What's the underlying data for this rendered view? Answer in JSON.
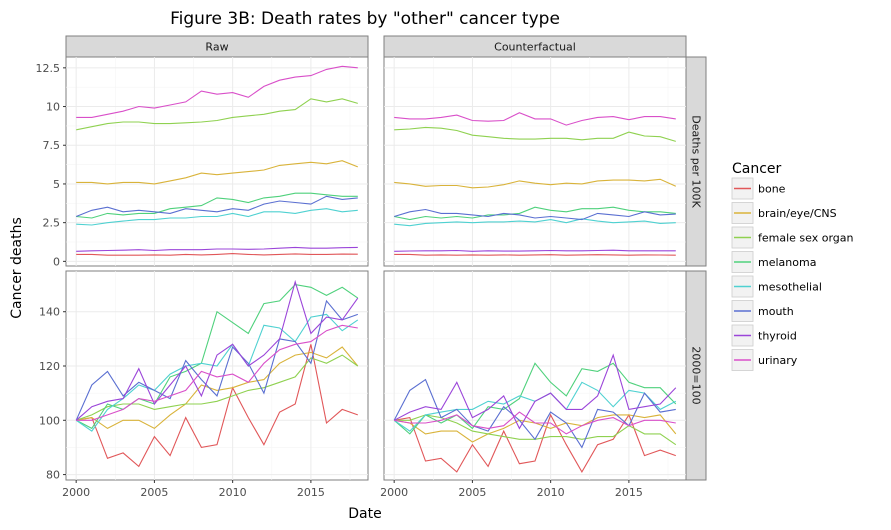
{
  "chart_data": {
    "type": "line",
    "title": "Figure 3B: Death rates by \"other\" cancer type",
    "xlabel": "Date",
    "ylabel": "Cancer deaths",
    "x": [
      2000,
      2001,
      2002,
      2003,
      2004,
      2005,
      2006,
      2007,
      2008,
      2009,
      2010,
      2011,
      2012,
      2013,
      2014,
      2015,
      2016,
      2017,
      2018
    ],
    "x_ticks": [
      "2000",
      "2005",
      "2010",
      "2015"
    ],
    "columns": [
      "Raw",
      "Counterfactual"
    ],
    "rows": [
      {
        "label": "Deaths per 100K",
        "ylim": [
          -0.3,
          13.2
        ],
        "y_ticks": [
          0,
          2.5,
          5,
          7.5,
          10,
          12.5
        ],
        "y_tick_labels": [
          "0",
          "2.5",
          "5",
          "7.5",
          "10",
          "12.5"
        ]
      },
      {
        "label": "2000=100",
        "ylim": [
          78,
          155
        ],
        "y_ticks": [
          80,
          100,
          120,
          140
        ],
        "y_tick_labels": [
          "80",
          "100",
          "120",
          "140"
        ]
      }
    ],
    "legend": {
      "title": "Cancer",
      "position": "right"
    },
    "series": [
      {
        "name": "bone",
        "color": "#e15759",
        "raw": [
          0.45,
          0.45,
          0.4,
          0.4,
          0.4,
          0.42,
          0.4,
          0.45,
          0.42,
          0.45,
          0.5,
          0.45,
          0.42,
          0.45,
          0.48,
          0.45,
          0.45,
          0.47,
          0.46
        ],
        "cf": [
          0.45,
          0.45,
          0.4,
          0.42,
          0.4,
          0.42,
          0.4,
          0.42,
          0.4,
          0.42,
          0.43,
          0.4,
          0.42,
          0.43,
          0.42,
          0.4,
          0.42,
          0.41,
          0.4
        ],
        "raw_idx": [
          100,
          101,
          86,
          88,
          83,
          94,
          87,
          101,
          90,
          91,
          112,
          101,
          91,
          103,
          106,
          128,
          99,
          104,
          102
        ],
        "cf_idx": [
          100,
          101,
          85,
          86,
          81,
          91,
          83,
          96,
          84,
          85,
          102,
          91,
          81,
          91,
          93,
          102,
          87,
          89,
          87
        ]
      },
      {
        "name": "brain/eye/CNS",
        "color": "#d9b33a",
        "raw": [
          5.1,
          5.1,
          5.0,
          5.1,
          5.1,
          5.0,
          5.2,
          5.4,
          5.7,
          5.6,
          5.7,
          5.8,
          5.9,
          6.2,
          6.3,
          6.4,
          6.3,
          6.5,
          6.1
        ],
        "cf": [
          5.1,
          5.0,
          4.85,
          4.9,
          4.9,
          4.75,
          4.8,
          4.95,
          5.2,
          5.05,
          4.95,
          5.05,
          5.0,
          5.2,
          5.25,
          5.25,
          5.2,
          5.3,
          4.85
        ],
        "raw_idx": [
          100,
          101,
          97,
          100,
          100,
          97,
          102,
          106,
          113,
          111,
          112,
          114,
          115,
          121,
          124,
          125,
          123,
          127,
          120
        ],
        "cf_idx": [
          100,
          99,
          95,
          96,
          96,
          92,
          95,
          97,
          100,
          99,
          97,
          99,
          98,
          101,
          102,
          102,
          101,
          102,
          95
        ]
      },
      {
        "name": "female sex organ",
        "color": "#8fd150",
        "raw": [
          8.5,
          8.7,
          8.9,
          9.0,
          9.0,
          8.9,
          8.9,
          8.95,
          9.0,
          9.1,
          9.3,
          9.4,
          9.5,
          9.7,
          9.8,
          10.5,
          10.3,
          10.5,
          10.2
        ],
        "cf": [
          8.5,
          8.55,
          8.65,
          8.6,
          8.45,
          8.15,
          8.05,
          7.95,
          7.9,
          7.9,
          7.95,
          7.95,
          7.85,
          7.95,
          7.95,
          8.35,
          8.1,
          8.05,
          7.75
        ],
        "raw_idx": [
          100,
          102,
          105,
          106,
          106,
          104,
          105,
          106,
          106,
          107,
          109,
          111,
          112,
          114,
          116,
          123,
          121,
          124,
          120
        ],
        "cf_idx": [
          100,
          100,
          102,
          101,
          99,
          96,
          95,
          94,
          93,
          93,
          94,
          94,
          93,
          94,
          94,
          98,
          95,
          95,
          91
        ]
      },
      {
        "name": "melanoma",
        "color": "#4fd17c",
        "raw": [
          2.9,
          2.8,
          3.1,
          3.0,
          3.1,
          3.1,
          3.4,
          3.5,
          3.6,
          4.1,
          4.0,
          3.8,
          4.1,
          4.2,
          4.4,
          4.4,
          4.3,
          4.2,
          4.2
        ],
        "cf": [
          2.9,
          2.7,
          2.9,
          2.8,
          2.9,
          2.8,
          3.0,
          3.0,
          3.1,
          3.5,
          3.3,
          3.2,
          3.4,
          3.4,
          3.5,
          3.3,
          3.2,
          3.2,
          3.1
        ],
        "raw_idx": [
          100,
          97,
          106,
          104,
          108,
          106,
          116,
          118,
          121,
          140,
          136,
          132,
          143,
          144,
          150,
          149,
          146,
          149,
          145
        ],
        "cf_idx": [
          100,
          95,
          102,
          99,
          102,
          97,
          105,
          104,
          108,
          121,
          114,
          109,
          119,
          118,
          121,
          114,
          112,
          112,
          106
        ]
      },
      {
        "name": "mesothelial",
        "color": "#4fd1d1",
        "raw": [
          2.4,
          2.35,
          2.5,
          2.6,
          2.7,
          2.7,
          2.8,
          2.8,
          2.9,
          2.9,
          3.1,
          2.9,
          3.2,
          3.2,
          3.1,
          3.3,
          3.4,
          3.2,
          3.3
        ],
        "cf": [
          2.4,
          2.3,
          2.45,
          2.5,
          2.55,
          2.5,
          2.55,
          2.55,
          2.6,
          2.55,
          2.7,
          2.5,
          2.75,
          2.6,
          2.5,
          2.55,
          2.6,
          2.45,
          2.5
        ],
        "raw_idx": [
          100,
          96,
          104,
          108,
          113,
          111,
          117,
          120,
          121,
          120,
          128,
          120,
          135,
          134,
          129,
          138,
          139,
          133,
          137
        ],
        "cf_idx": [
          100,
          96,
          102,
          103,
          104,
          104,
          107,
          106,
          109,
          107,
          110,
          104,
          114,
          111,
          105,
          111,
          110,
          104,
          107
        ]
      },
      {
        "name": "mouth",
        "color": "#5a6fd1",
        "raw": [
          2.9,
          3.3,
          3.5,
          3.2,
          3.3,
          3.2,
          3.1,
          3.4,
          3.3,
          3.2,
          3.4,
          3.3,
          3.7,
          3.9,
          3.8,
          3.7,
          4.2,
          4.0,
          4.1
        ],
        "cf": [
          2.9,
          3.2,
          3.35,
          3.1,
          3.1,
          3.0,
          2.9,
          3.1,
          3.0,
          2.8,
          2.9,
          2.8,
          2.7,
          3.1,
          3.0,
          2.9,
          3.2,
          3.0,
          3.05
        ],
        "raw_idx": [
          100,
          113,
          118,
          109,
          114,
          111,
          108,
          122,
          115,
          109,
          127,
          121,
          110,
          130,
          129,
          121,
          144,
          137,
          139
        ],
        "cf_idx": [
          100,
          111,
          115,
          101,
          104,
          98,
          96,
          105,
          100,
          93,
          103,
          99,
          90,
          104,
          103,
          98,
          110,
          103,
          104
        ]
      },
      {
        "name": "thyroid",
        "color": "#9b45d9",
        "raw": [
          0.65,
          0.68,
          0.7,
          0.72,
          0.75,
          0.7,
          0.75,
          0.75,
          0.75,
          0.8,
          0.8,
          0.78,
          0.8,
          0.85,
          0.9,
          0.85,
          0.85,
          0.88,
          0.9
        ],
        "cf": [
          0.65,
          0.67,
          0.68,
          0.68,
          0.7,
          0.65,
          0.68,
          0.66,
          0.66,
          0.68,
          0.7,
          0.68,
          0.68,
          0.7,
          0.72,
          0.68,
          0.68,
          0.68,
          0.68
        ],
        "raw_idx": [
          100,
          105,
          107,
          108,
          119,
          106,
          113,
          120,
          109,
          124,
          128,
          120,
          124,
          130,
          151,
          132,
          138,
          137,
          145
        ],
        "cf_idx": [
          100,
          103,
          105,
          104,
          114,
          101,
          104,
          109,
          97,
          107,
          110,
          104,
          104,
          109,
          124,
          104,
          105,
          106,
          112
        ]
      },
      {
        "name": "urinary",
        "color": "#d94fc9",
        "raw": [
          9.3,
          9.3,
          9.5,
          9.7,
          10.0,
          9.9,
          10.1,
          10.3,
          11.0,
          10.8,
          10.9,
          10.6,
          11.3,
          11.7,
          11.9,
          12.0,
          12.4,
          12.6,
          12.5
        ],
        "cf": [
          9.3,
          9.2,
          9.2,
          9.3,
          9.45,
          9.1,
          9.05,
          9.1,
          9.6,
          9.2,
          9.2,
          8.8,
          9.1,
          9.3,
          9.35,
          9.15,
          9.35,
          9.35,
          9.2
        ],
        "raw_idx": [
          100,
          100,
          102,
          104,
          108,
          107,
          109,
          111,
          118,
          116,
          117,
          114,
          121,
          126,
          128,
          129,
          133,
          135,
          134
        ],
        "cf_idx": [
          100,
          99,
          99,
          100,
          102,
          98,
          97,
          98,
          103,
          99,
          99,
          95,
          98,
          100,
          101,
          98,
          100,
          100,
          99
        ]
      }
    ]
  }
}
